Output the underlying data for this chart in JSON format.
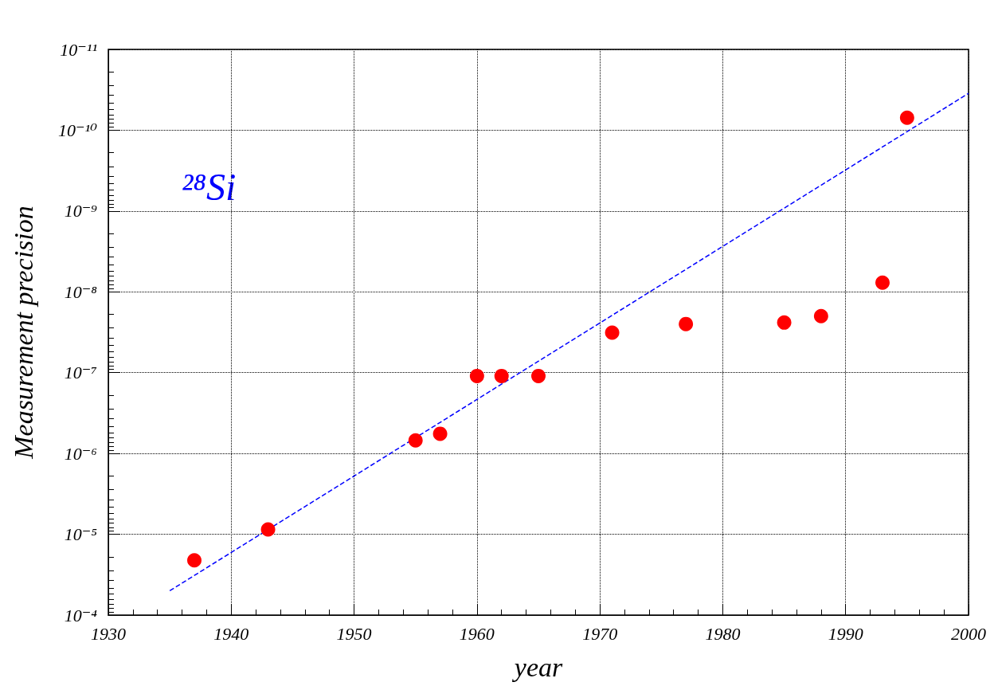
{
  "chart_data": {
    "type": "scatter",
    "xlabel": "year",
    "ylabel": "Measurement precision",
    "log": "y",
    "annotations": [
      "²⁸Si"
    ],
    "xlim": [
      1930,
      2000
    ],
    "xticks": [
      1930,
      1940,
      1950,
      1960,
      1970,
      1980,
      1990,
      2000
    ],
    "ylim": [
      0.0001,
      1e-11
    ],
    "yticks": [
      {
        "value": 0.0001,
        "label": "10⁻⁴"
      },
      {
        "value": 1e-05,
        "label": "10⁻⁵"
      },
      {
        "value": 1e-06,
        "label": "10⁻⁶"
      },
      {
        "value": 1e-07,
        "label": "10⁻⁷"
      },
      {
        "value": 1e-08,
        "label": "10⁻⁸"
      },
      {
        "value": 1e-09,
        "label": "10⁻⁹"
      },
      {
        "value": 1e-10,
        "label": "10⁻¹⁰"
      },
      {
        "value": 1e-11,
        "label": "10⁻¹¹"
      }
    ],
    "grid": true,
    "series": [
      {
        "type": "line",
        "marker": "none",
        "line_style": "dashed",
        "color": "#0000ff",
        "x": [
          1935,
          2000
        ],
        "values": [
          5e-05,
          3.5e-11
        ]
      },
      {
        "marker": "circle",
        "color": "#ff0000",
        "x": [
          1937,
          1943,
          1955,
          1957,
          1960,
          1962,
          1965,
          1971,
          1977,
          1985,
          1988,
          1993,
          1995
        ],
        "values": [
          2.1e-05,
          8.7e-06,
          6.9e-07,
          5.7e-07,
          1.1e-07,
          1.1e-07,
          1.1e-07,
          3.2e-08,
          2.5e-08,
          2.4e-08,
          2e-08,
          7.7e-09,
          7e-11
        ]
      }
    ]
  }
}
